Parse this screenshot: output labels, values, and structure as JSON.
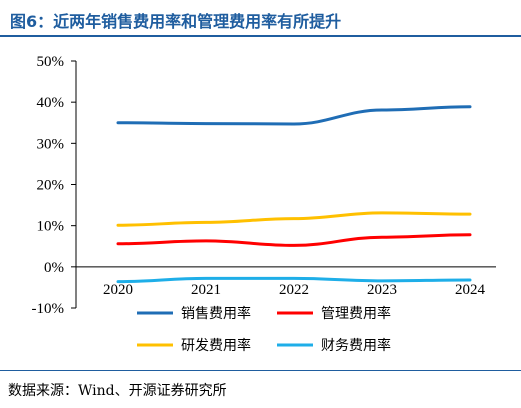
{
  "header": {
    "title": "图6：近两年销售费用率和管理费用率有所提升"
  },
  "footer": {
    "source": "数据来源：Wind、开源证券研究所"
  },
  "chart_data": {
    "type": "line",
    "x": [
      "2020",
      "2021",
      "2022",
      "2023",
      "2024"
    ],
    "series": [
      {
        "name": "销售费用率",
        "color": "#1f6db5",
        "values": [
          35.0,
          34.8,
          34.7,
          38.1,
          38.9
        ]
      },
      {
        "name": "管理费用率",
        "color": "#ff0000",
        "values": [
          5.6,
          6.3,
          5.2,
          7.2,
          7.8
        ]
      },
      {
        "name": "研发费用率",
        "color": "#ffc000",
        "values": [
          10.1,
          10.8,
          11.7,
          13.1,
          12.8
        ]
      },
      {
        "name": "财务费用率",
        "color": "#1eaee8",
        "values": [
          -3.6,
          -2.8,
          -2.8,
          -3.4,
          -3.2
        ]
      }
    ],
    "yticks": [
      "50%",
      "40%",
      "30%",
      "20%",
      "10%",
      "0%",
      "-10%"
    ],
    "ylim": [
      -10,
      50
    ],
    "grid": false,
    "legend_position": "bottom"
  }
}
